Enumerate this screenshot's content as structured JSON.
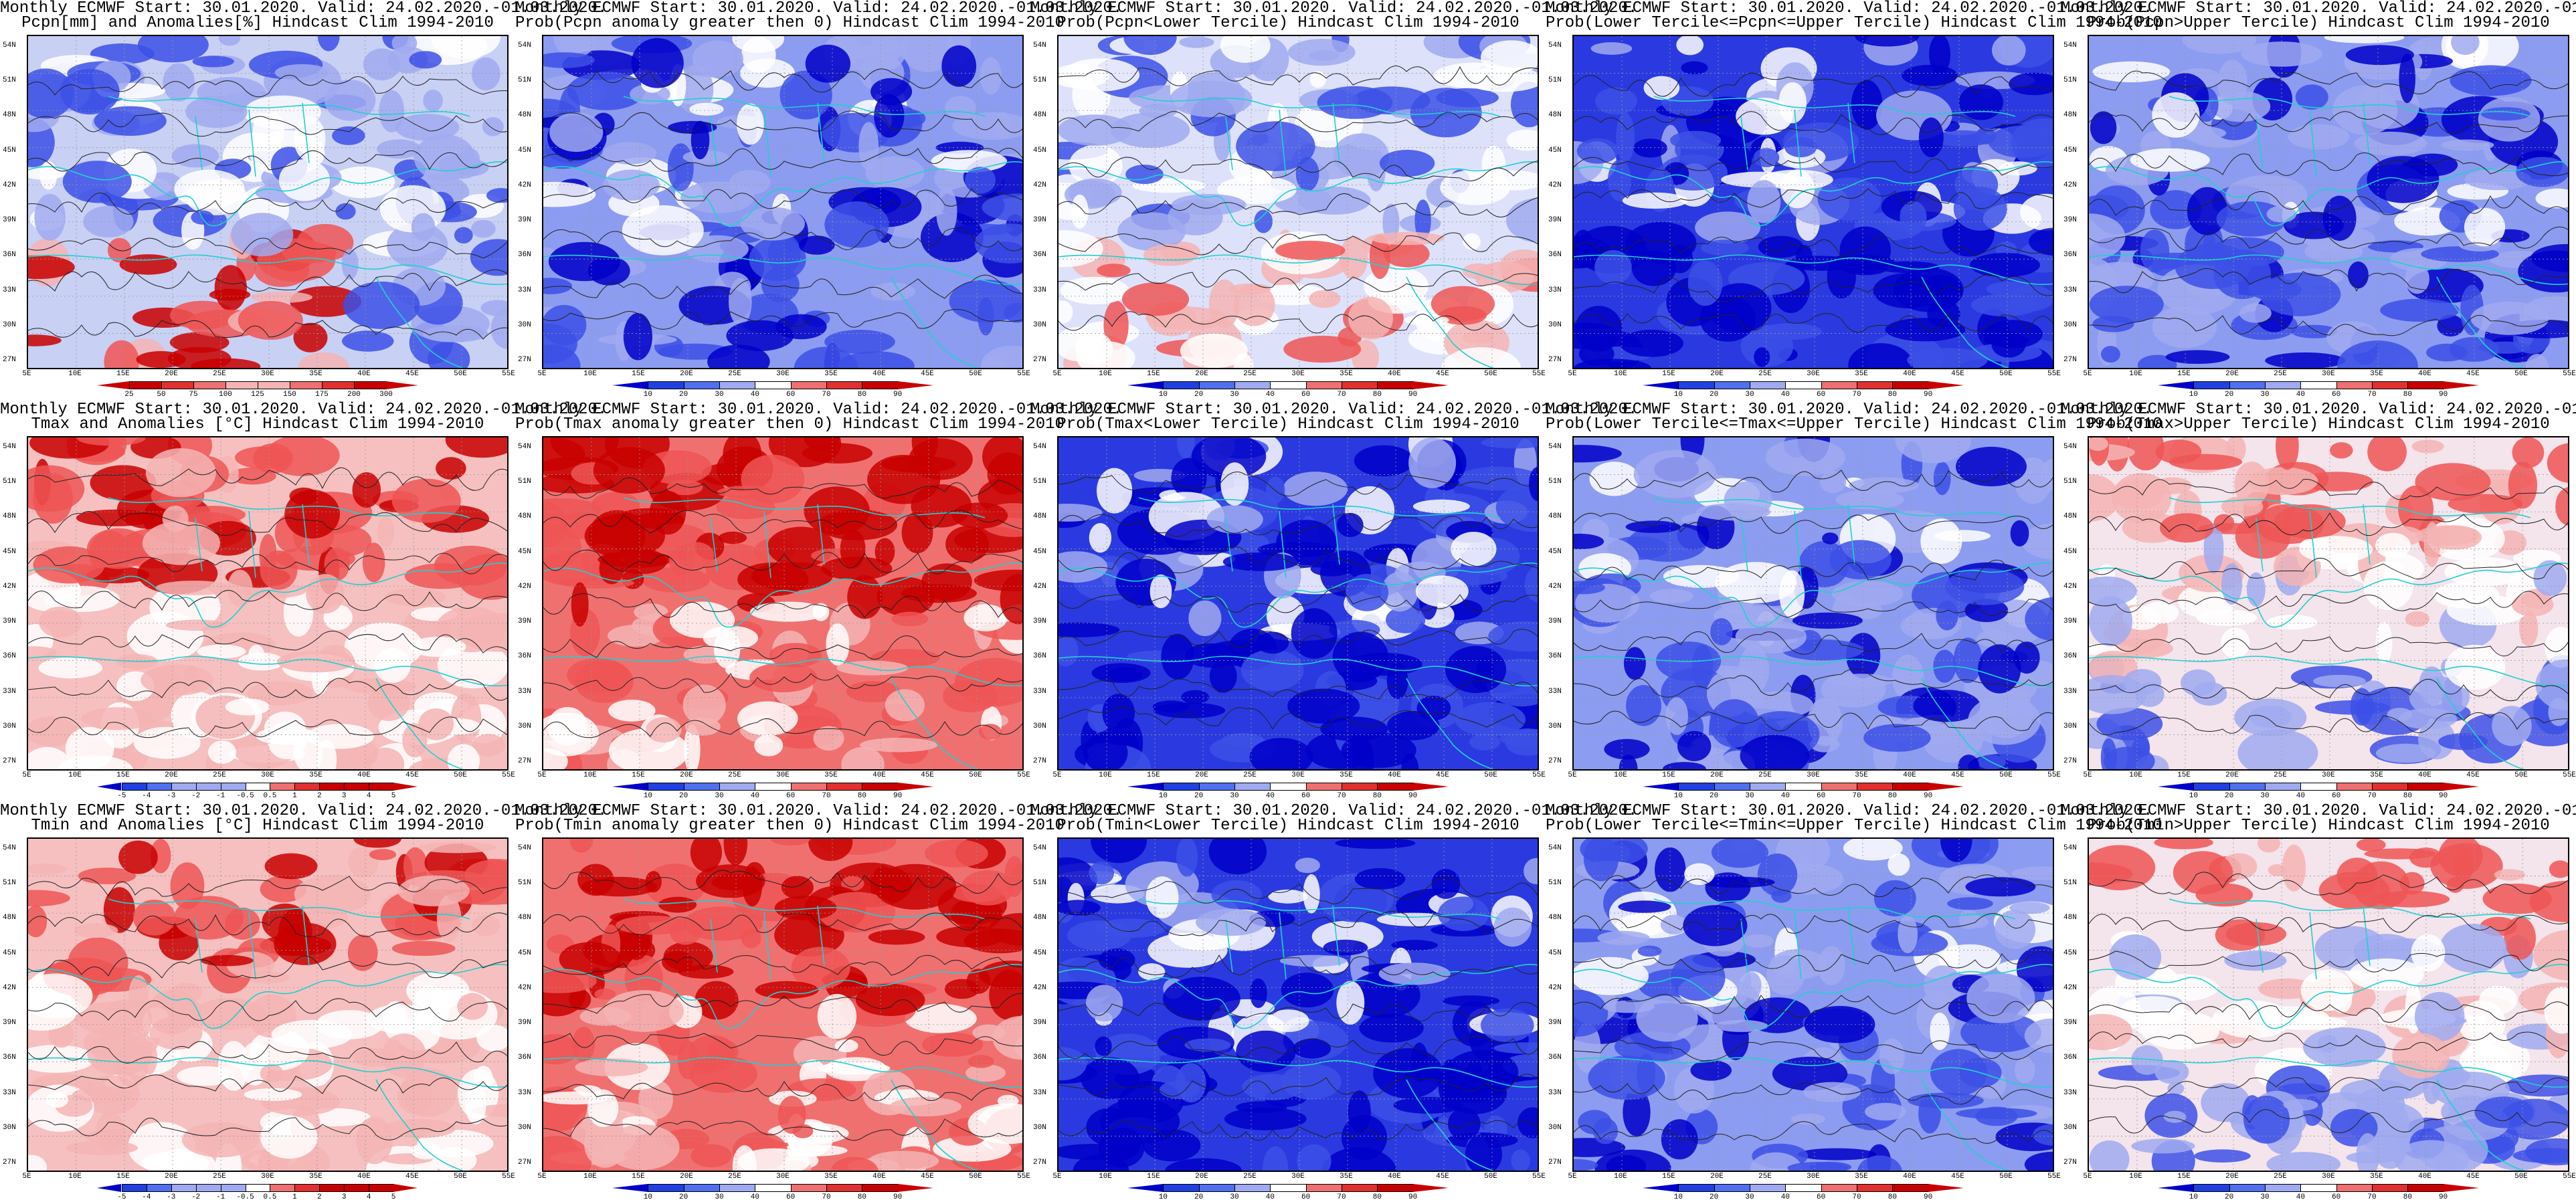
{
  "common": {
    "title_line1": "Monthly ECMWF Start: 30.01.2020. Valid: 24.02.2020.-01.03.2020.",
    "lat_labels": [
      "54N",
      "51N",
      "48N",
      "45N",
      "42N",
      "39N",
      "36N",
      "33N",
      "30N",
      "27N"
    ],
    "lon_labels": [
      "5E",
      "10E",
      "15E",
      "20E",
      "25E",
      "30E",
      "35E",
      "40E",
      "45E",
      "50E",
      "55E"
    ]
  },
  "colors": {
    "blue_dark": "#0000c8",
    "blue_mid": "#3c50e6",
    "blue_light": "#a0aaf0",
    "white": "#ffffff",
    "red_light": "#f5b4b4",
    "red_mid": "#ee5555",
    "red_dark": "#c80000",
    "coast": "#20d0d0"
  },
  "panels": [
    {
      "id": "pcpn-anom",
      "subtitle": "Pcpn[mm] and Anomalies[%] Hindcast Clim 1994-2010",
      "scheme": "precip",
      "colorbar": [
        "25",
        "50",
        "75",
        "100",
        "125",
        "150",
        "175",
        "200",
        "300"
      ]
    },
    {
      "id": "pcpn-prob-pos",
      "subtitle": "Prob(Pcpn anomaly greater then 0) Hindcast Clim 1994-2010",
      "scheme": "blue",
      "colorbar": [
        "10",
        "20",
        "30",
        "40",
        "60",
        "70",
        "80",
        "90"
      ]
    },
    {
      "id": "pcpn-prob-lower",
      "subtitle": "Prob(Pcpn<Lower Tercile) Hindcast Clim 1994-2010",
      "scheme": "mixed",
      "colorbar": [
        "10",
        "20",
        "30",
        "40",
        "60",
        "70",
        "80",
        "90"
      ]
    },
    {
      "id": "pcpn-prob-middle",
      "subtitle": "Prob(Lower Tercile<=Pcpn<=Upper Tercile) Hindcast Clim 1994-2010",
      "scheme": "deepblue",
      "colorbar": [
        "10",
        "20",
        "30",
        "40",
        "60",
        "70",
        "80",
        "90"
      ]
    },
    {
      "id": "pcpn-prob-upper",
      "subtitle": "Prob(Pcpn>Upper Tercile) Hindcast Clim 1994-2010",
      "scheme": "blue",
      "colorbar": [
        "10",
        "20",
        "30",
        "40",
        "60",
        "70",
        "80",
        "90"
      ]
    },
    {
      "id": "tmax-anom",
      "subtitle": "Tmax and Anomalies [°C] Hindcast Clim 1994-2010",
      "scheme": "red",
      "colorbar": [
        "-5",
        "-4",
        "-3",
        "-2",
        "-1",
        "-0.5",
        "0.5",
        "1",
        "2",
        "3",
        "4",
        "5"
      ]
    },
    {
      "id": "tmax-prob-pos",
      "subtitle": "Prob(Tmax anomaly greater then 0) Hindcast Clim 1994-2010",
      "scheme": "deepred",
      "colorbar": [
        "10",
        "20",
        "30",
        "40",
        "60",
        "70",
        "80",
        "90"
      ]
    },
    {
      "id": "tmax-prob-lower",
      "subtitle": "Prob(Tmax<Lower Tercile) Hindcast Clim 1994-2010",
      "scheme": "deepblue",
      "colorbar": [
        "10",
        "20",
        "30",
        "40",
        "60",
        "70",
        "80",
        "90"
      ]
    },
    {
      "id": "tmax-prob-middle",
      "subtitle": "Prob(Lower Tercile<=Tmax<=Upper Tercile) Hindcast Clim 1994-2010",
      "scheme": "blue",
      "colorbar": [
        "10",
        "20",
        "30",
        "40",
        "60",
        "70",
        "80",
        "90"
      ]
    },
    {
      "id": "tmax-prob-upper",
      "subtitle": "Prob(Tmax>Upper Tercile) Hindcast Clim 1994-2010",
      "scheme": "redblue",
      "colorbar": [
        "10",
        "20",
        "30",
        "40",
        "60",
        "70",
        "80",
        "90"
      ]
    },
    {
      "id": "tmin-anom",
      "subtitle": "Tmin and Anomalies [°C] Hindcast Clim 1994-2010",
      "scheme": "red",
      "colorbar": [
        "-5",
        "-4",
        "-3",
        "-2",
        "-1",
        "-0.5",
        "0.5",
        "1",
        "2",
        "3",
        "4",
        "5"
      ]
    },
    {
      "id": "tmin-prob-pos",
      "subtitle": "Prob(Tmin anomaly greater then 0) Hindcast Clim 1994-2010",
      "scheme": "deepred",
      "colorbar": [
        "10",
        "20",
        "30",
        "40",
        "60",
        "70",
        "80",
        "90"
      ]
    },
    {
      "id": "tmin-prob-lower",
      "subtitle": "Prob(Tmin<Lower Tercile) Hindcast Clim 1994-2010",
      "scheme": "deepblue",
      "colorbar": [
        "10",
        "20",
        "30",
        "40",
        "60",
        "70",
        "80",
        "90"
      ]
    },
    {
      "id": "tmin-prob-middle",
      "subtitle": "Prob(Lower Tercile<=Tmin<=Upper Tercile) Hindcast Clim 1994-2010",
      "scheme": "blue",
      "colorbar": [
        "10",
        "20",
        "30",
        "40",
        "60",
        "70",
        "80",
        "90"
      ]
    },
    {
      "id": "tmin-prob-upper",
      "subtitle": "Prob(Tmin>Upper Tercile) Hindcast Clim 1994-2010",
      "scheme": "redblue",
      "colorbar": [
        "10",
        "20",
        "30",
        "40",
        "60",
        "70",
        "80",
        "90"
      ]
    }
  ]
}
